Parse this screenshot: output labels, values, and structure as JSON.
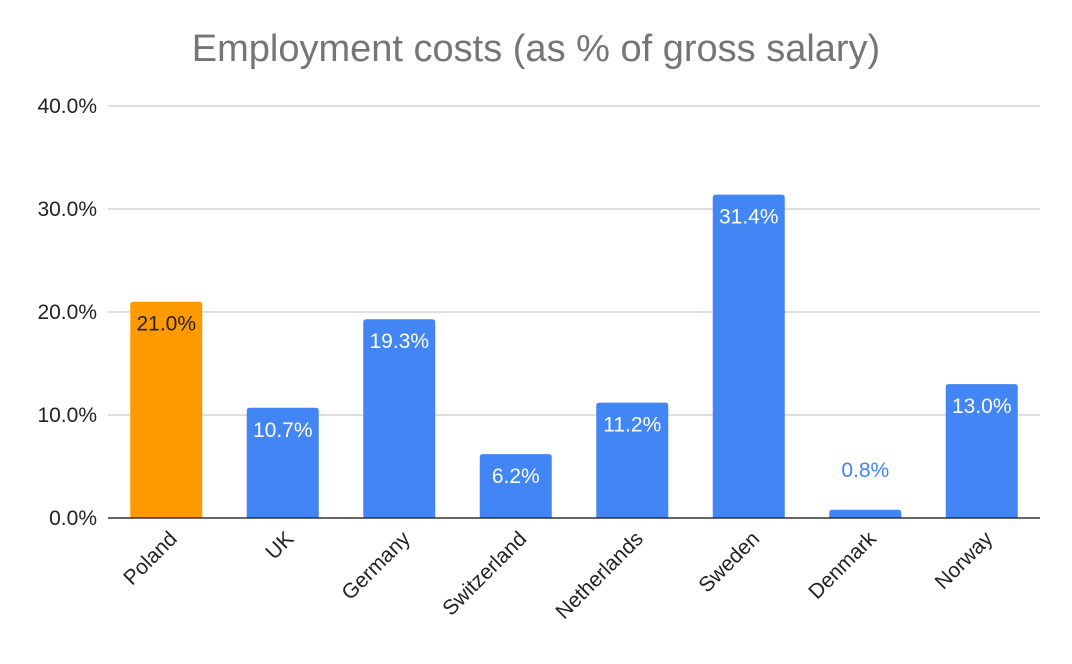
{
  "chart_data": {
    "type": "bar",
    "title": "Employment costs (as % of gross salary)",
    "categories": [
      "Poland",
      "UK",
      "Germany",
      "Switzerland",
      "Netherlands",
      "Sweden",
      "Denmark",
      "Norway"
    ],
    "values": [
      21.0,
      10.7,
      19.3,
      6.2,
      11.2,
      31.4,
      0.8,
      13.0
    ],
    "data_labels": [
      "21.0%",
      "10.7%",
      "19.3%",
      "6.2%",
      "11.2%",
      "31.4%",
      "0.8%",
      "13.0%"
    ],
    "bar_colors": [
      "#ff9900",
      "#4285f4",
      "#4285f4",
      "#4285f4",
      "#4285f4",
      "#4285f4",
      "#4285f4",
      "#4285f4"
    ],
    "ylim": [
      0,
      40
    ],
    "yticks": [
      0,
      10,
      20,
      30,
      40
    ],
    "ytick_labels": [
      "0.0%",
      "10.0%",
      "20.0%",
      "30.0%",
      "40.0%"
    ],
    "xlabel": "",
    "ylabel": "",
    "grid": true,
    "legend": "none"
  }
}
